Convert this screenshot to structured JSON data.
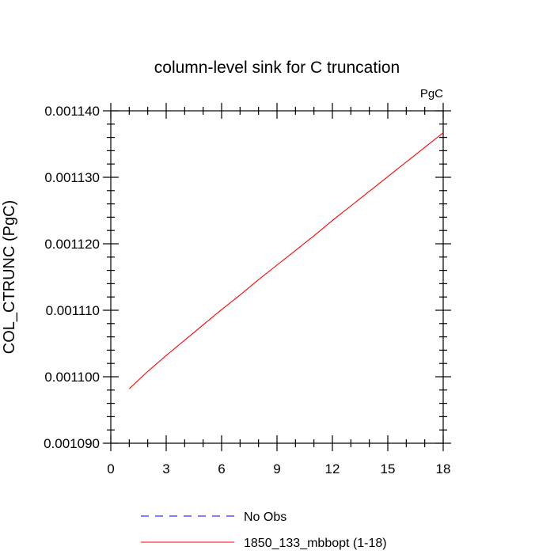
{
  "chart_data": {
    "type": "line",
    "title": "column-level sink for C truncation",
    "units_label": "PgC",
    "ylabel": "COL_CTRUNC  (PgC)",
    "xlabel": "",
    "xlim": [
      0,
      18
    ],
    "ylim": [
      0.00109,
      0.00114
    ],
    "x_ticks": [
      0,
      3,
      6,
      9,
      12,
      15,
      18
    ],
    "x_tick_labels": [
      "0",
      "3",
      "6",
      "9",
      "12",
      "15",
      "18"
    ],
    "x_minor_step": 1,
    "y_ticks": [
      0.00109,
      0.0011,
      0.00111,
      0.00112,
      0.00113,
      0.00114
    ],
    "y_tick_labels": [
      "0.001090",
      "0.001100",
      "0.001110",
      "0.001120",
      "0.001130",
      "0.001140"
    ],
    "y_minor_step": 2e-06,
    "grid": false,
    "legend_position": "bottom",
    "series": [
      {
        "name": "No Obs",
        "color": "#0000ff",
        "style": "dashed",
        "x": [],
        "y": []
      },
      {
        "name": "1850_133_mbbopt (1-18)",
        "color": "#ff0000",
        "style": "solid",
        "x": [
          1,
          2,
          3,
          4,
          5,
          6,
          7,
          8,
          9,
          10,
          11,
          12,
          13,
          14,
          15,
          16,
          17,
          18
        ],
        "y": [
          0.0010982,
          0.0011008,
          0.0011032,
          0.0011055,
          0.0011078,
          0.0011101,
          0.0011123,
          0.0011146,
          0.0011168,
          0.001119,
          0.0011212,
          0.0011235,
          0.0011257,
          0.0011279,
          0.0011301,
          0.0011323,
          0.0011345,
          0.0011367
        ]
      }
    ]
  }
}
